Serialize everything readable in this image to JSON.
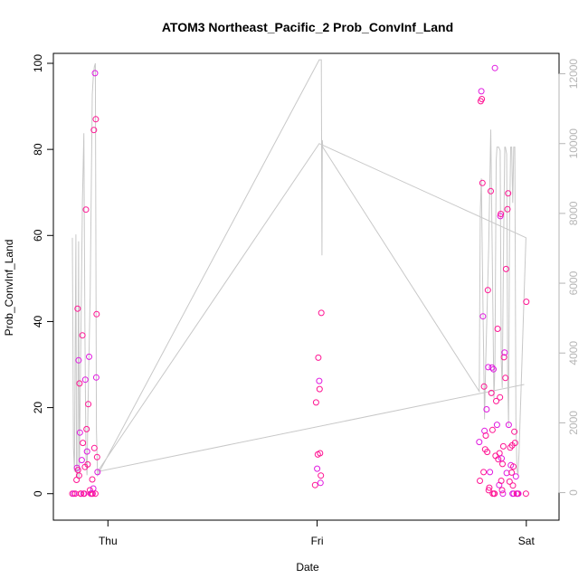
{
  "chart_data": {
    "type": "scatter",
    "title": "ATOM3 Northeast_Pacific_2 Prob_ConvInf_Land",
    "xlabel": "Date",
    "ylabel": "Prob_ConvInf_Land",
    "x_ticks": [
      {
        "label": "Thu",
        "value": 0
      },
      {
        "label": "Fri",
        "value": 1
      },
      {
        "label": "Sat",
        "value": 2
      }
    ],
    "xlim": [
      -0.17,
      2.07
    ],
    "ylim": [
      -3,
      100
    ],
    "y_ticks": [
      0,
      20,
      40,
      60,
      80,
      100
    ],
    "y2lim": [
      -400,
      12300
    ],
    "y2_ticks": [
      0,
      2000,
      4000,
      6000,
      8000,
      10000,
      12000
    ],
    "colors": {
      "points": "#ff1493",
      "points_alt": "#e01ae0",
      "line": "#c8c8c8",
      "right_axis": "#b5b5b5"
    },
    "series": [
      {
        "type": "scatter",
        "axis": "left",
        "points": [
          [
            -0.17,
            0
          ],
          [
            -0.163,
            0
          ],
          [
            -0.156,
            0
          ],
          [
            -0.15,
            3.2
          ],
          [
            -0.148,
            6
          ],
          [
            -0.145,
            43
          ],
          [
            -0.143,
            5.5
          ],
          [
            -0.14,
            31
          ],
          [
            -0.138,
            4.2
          ],
          [
            -0.136,
            25.6
          ],
          [
            -0.134,
            14.2
          ],
          [
            -0.131,
            0
          ],
          [
            -0.128,
            0
          ],
          [
            -0.125,
            7.8
          ],
          [
            -0.122,
            36.8
          ],
          [
            -0.12,
            11.8
          ],
          [
            -0.117,
            0
          ],
          [
            -0.113,
            0
          ],
          [
            -0.11,
            6.2
          ],
          [
            -0.108,
            26.5
          ],
          [
            -0.105,
            66
          ],
          [
            -0.102,
            15
          ],
          [
            -0.1,
            9.8
          ],
          [
            -0.097,
            6.8
          ],
          [
            -0.094,
            20.8
          ],
          [
            -0.09,
            31.8
          ],
          [
            -0.086,
            0.8
          ],
          [
            -0.082,
            0
          ],
          [
            -0.078,
            0
          ],
          [
            -0.075,
            3.3
          ],
          [
            -0.073,
            0
          ],
          [
            -0.07,
            1.2
          ],
          [
            -0.067,
            84.5
          ],
          [
            -0.065,
            10.6
          ],
          [
            -0.062,
            97.7
          ],
          [
            -0.06,
            0
          ],
          [
            -0.058,
            87
          ],
          [
            -0.056,
            27
          ],
          [
            -0.054,
            41.7
          ],
          [
            -0.052,
            8.5
          ],
          [
            -0.05,
            5
          ],
          [
            0.99,
            2
          ],
          [
            0.995,
            21.2
          ],
          [
            1.0,
            5.8
          ],
          [
            1.003,
            9.1
          ],
          [
            1.006,
            31.6
          ],
          [
            1.01,
            26.2
          ],
          [
            1.012,
            24.3
          ],
          [
            1.014,
            9.4
          ],
          [
            1.016,
            2.5
          ],
          [
            1.018,
            4.2
          ],
          [
            1.02,
            42
          ],
          [
            1.775,
            12
          ],
          [
            1.778,
            3
          ],
          [
            1.782,
            91.2
          ],
          [
            1.785,
            93.5
          ],
          [
            1.787,
            91.7
          ],
          [
            1.79,
            72.2
          ],
          [
            1.793,
            41.2
          ],
          [
            1.796,
            5
          ],
          [
            1.798,
            24.9
          ],
          [
            1.8,
            14.6
          ],
          [
            1.803,
            10.3
          ],
          [
            1.806,
            13.5
          ],
          [
            1.81,
            19.6
          ],
          [
            1.813,
            9.7
          ],
          [
            1.816,
            47.3
          ],
          [
            1.818,
            29.4
          ],
          [
            1.82,
            0.8
          ],
          [
            1.823,
            1.4
          ],
          [
            1.826,
            5
          ],
          [
            1.83,
            70.3
          ],
          [
            1.833,
            23.4
          ],
          [
            1.836,
            29.3
          ],
          [
            1.838,
            14.8
          ],
          [
            1.84,
            0
          ],
          [
            1.843,
            28.9
          ],
          [
            1.846,
            0
          ],
          [
            1.848,
            0
          ],
          [
            1.85,
            98.9
          ],
          [
            1.853,
            8.8
          ],
          [
            1.856,
            21.5
          ],
          [
            1.86,
            16
          ],
          [
            1.863,
            38.3
          ],
          [
            1.866,
            8
          ],
          [
            1.87,
            2
          ],
          [
            1.872,
            9.4
          ],
          [
            1.874,
            22.4
          ],
          [
            1.876,
            64.5
          ],
          [
            1.878,
            65
          ],
          [
            1.88,
            3
          ],
          [
            1.882,
            8.2
          ],
          [
            1.884,
            0.8
          ],
          [
            1.886,
            6.9
          ],
          [
            1.888,
            0
          ],
          [
            1.89,
            11
          ],
          [
            1.893,
            31.7
          ],
          [
            1.896,
            32.8
          ],
          [
            1.9,
            26.9
          ],
          [
            1.903,
            52.2
          ],
          [
            1.906,
            4.8
          ],
          [
            1.91,
            66.1
          ],
          [
            1.913,
            69.8
          ],
          [
            1.916,
            16
          ],
          [
            1.92,
            2.8
          ],
          [
            1.923,
            10.7
          ],
          [
            1.926,
            6.6
          ],
          [
            1.93,
            4.9
          ],
          [
            1.932,
            11.2
          ],
          [
            1.934,
            0
          ],
          [
            1.936,
            1.9
          ],
          [
            1.938,
            6.3
          ],
          [
            1.94,
            0
          ],
          [
            1.943,
            14.4
          ],
          [
            1.946,
            11.8
          ],
          [
            1.95,
            4
          ],
          [
            1.954,
            0
          ],
          [
            1.958,
            0
          ],
          [
            1.962,
            0
          ],
          [
            1.998,
            0
          ],
          [
            2.0,
            44.6
          ]
        ]
      },
      {
        "type": "line",
        "axis": "right",
        "points": [
          [
            -0.17,
            7300
          ],
          [
            -0.165,
            1300
          ],
          [
            -0.16,
            600
          ],
          [
            -0.153,
            7400
          ],
          [
            -0.15,
            600
          ],
          [
            -0.145,
            400
          ],
          [
            -0.14,
            7200
          ],
          [
            -0.137,
            400
          ],
          [
            -0.13,
            4200
          ],
          [
            -0.122,
            8300
          ],
          [
            -0.115,
            10300
          ],
          [
            -0.11,
            4500
          ],
          [
            -0.105,
            1100
          ],
          [
            -0.1,
            500
          ],
          [
            -0.095,
            2500
          ],
          [
            -0.085,
            5700
          ],
          [
            -0.075,
            11400
          ],
          [
            -0.07,
            11900
          ],
          [
            -0.065,
            12200
          ],
          [
            -0.06,
            12300
          ],
          [
            -0.055,
            1800
          ],
          [
            -0.05,
            500
          ],
          [
            1.01,
            12400
          ],
          [
            1.02,
            12400
          ],
          [
            1.023,
            6800
          ],
          [
            1.025,
            10100
          ],
          [
            1.027,
            9900
          ],
          [
            1.775,
            2900
          ],
          [
            1.78,
            8000
          ],
          [
            1.785,
            9000
          ],
          [
            1.79,
            6500
          ],
          [
            1.8,
            2100
          ],
          [
            1.806,
            3800
          ],
          [
            1.82,
            7000
          ],
          [
            1.83,
            10400
          ],
          [
            1.836,
            7400
          ],
          [
            1.845,
            2700
          ],
          [
            1.85,
            3600
          ],
          [
            1.856,
            9500
          ],
          [
            1.86,
            9900
          ],
          [
            1.868,
            9900
          ],
          [
            1.875,
            9800
          ],
          [
            1.88,
            3800
          ],
          [
            1.885,
            3000
          ],
          [
            1.892,
            7400
          ],
          [
            1.897,
            9900
          ],
          [
            1.9,
            9900
          ],
          [
            1.906,
            9700
          ],
          [
            1.911,
            3400
          ],
          [
            1.915,
            1900
          ],
          [
            1.92,
            7700
          ],
          [
            1.925,
            9900
          ],
          [
            1.93,
            9900
          ],
          [
            1.935,
            8300
          ],
          [
            1.94,
            9900
          ],
          [
            1.945,
            9900
          ],
          [
            1.95,
            2100
          ],
          [
            1.955,
            700
          ],
          [
            1.96,
            500
          ],
          [
            1.965,
            1100
          ],
          [
            1.998,
            7300
          ],
          [
            2.0,
            7300
          ],
          [
            1.01,
            10000
          ],
          [
            -0.05,
            600
          ],
          [
            1.99,
            3100
          ]
        ]
      }
    ]
  }
}
